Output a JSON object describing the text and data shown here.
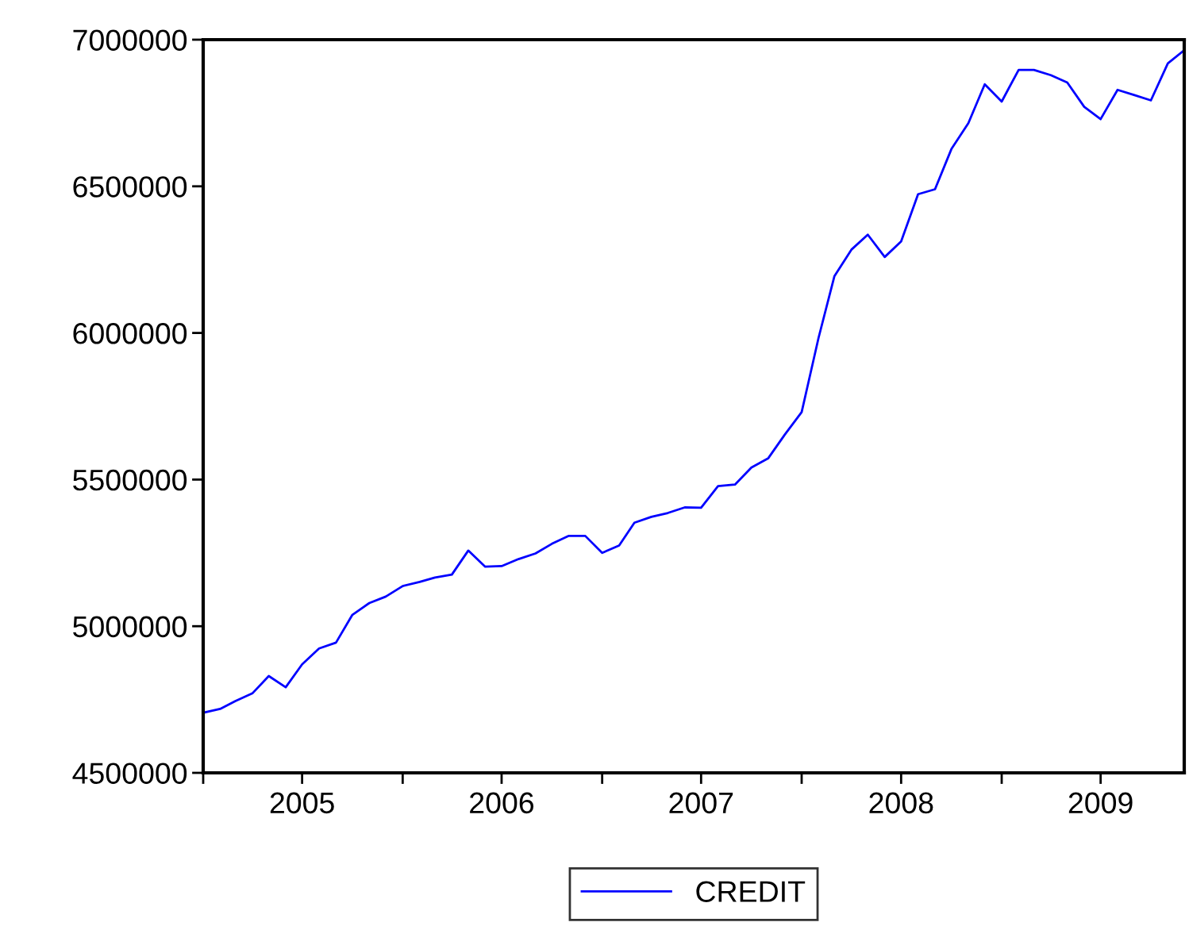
{
  "chart_data": {
    "type": "line",
    "x": [
      "2005-01",
      "2005-02",
      "2005-03",
      "2005-04",
      "2005-05",
      "2005-06",
      "2005-07",
      "2005-08",
      "2005-09",
      "2005-10",
      "2005-11",
      "2005-12",
      "2006-01",
      "2006-02",
      "2006-03",
      "2006-04",
      "2006-05",
      "2006-06",
      "2006-07",
      "2006-08",
      "2006-09",
      "2006-10",
      "2006-11",
      "2006-12",
      "2007-01",
      "2007-02",
      "2007-03",
      "2007-04",
      "2007-05",
      "2007-06",
      "2007-07",
      "2007-08",
      "2007-09",
      "2007-10",
      "2007-11",
      "2007-12",
      "2008-01",
      "2008-02",
      "2008-03",
      "2008-04",
      "2008-05",
      "2008-06",
      "2008-07",
      "2008-08",
      "2008-09",
      "2008-10",
      "2008-11",
      "2008-12",
      "2009-01",
      "2009-02",
      "2009-03",
      "2009-04",
      "2009-05",
      "2009-06",
      "2009-07",
      "2009-08",
      "2009-09",
      "2009-10",
      "2009-11",
      "2009-12"
    ],
    "series": [
      {
        "name": "CREDIT",
        "color": "#0000ff",
        "values": [
          4705000,
          4718000,
          4745000,
          4771000,
          4830000,
          4792000,
          4870000,
          4924000,
          4944000,
          5039000,
          5079000,
          5101000,
          5137000,
          5151000,
          5166000,
          5176000,
          5258000,
          5203000,
          5205000,
          5229000,
          5248000,
          5281000,
          5308000,
          5308000,
          5250000,
          5275000,
          5353000,
          5373000,
          5386000,
          5405000,
          5404000,
          5478000,
          5483000,
          5541000,
          5573000,
          5653000,
          5730000,
          5984000,
          6194000,
          6284000,
          6335000,
          6259000,
          6312000,
          6473000,
          6490000,
          6627000,
          6715000,
          6848000,
          6789000,
          6897000,
          6897000,
          6879000,
          6854000,
          6771000,
          6729000,
          6829000,
          6811000,
          6793000,
          6919000,
          6964000
        ]
      }
    ],
    "xlim": [
      "2005-01",
      "2009-12"
    ],
    "xticks": [
      {
        "value": "2005-01",
        "label": null
      },
      {
        "value": "2005-07",
        "label": "2005"
      },
      {
        "value": "2006-01",
        "label": null
      },
      {
        "value": "2006-07",
        "label": "2006"
      },
      {
        "value": "2007-01",
        "label": null
      },
      {
        "value": "2007-07",
        "label": "2007"
      },
      {
        "value": "2008-01",
        "label": null
      },
      {
        "value": "2008-07",
        "label": "2008"
      },
      {
        "value": "2009-01",
        "label": null
      },
      {
        "value": "2009-07",
        "label": "2009"
      }
    ],
    "ylim": [
      4500000,
      7000000
    ],
    "yticks": [
      4500000,
      5000000,
      5500000,
      6000000,
      6500000,
      7000000
    ],
    "grid": false,
    "legend": "bottom",
    "marker": "none",
    "line_style": "solid"
  }
}
